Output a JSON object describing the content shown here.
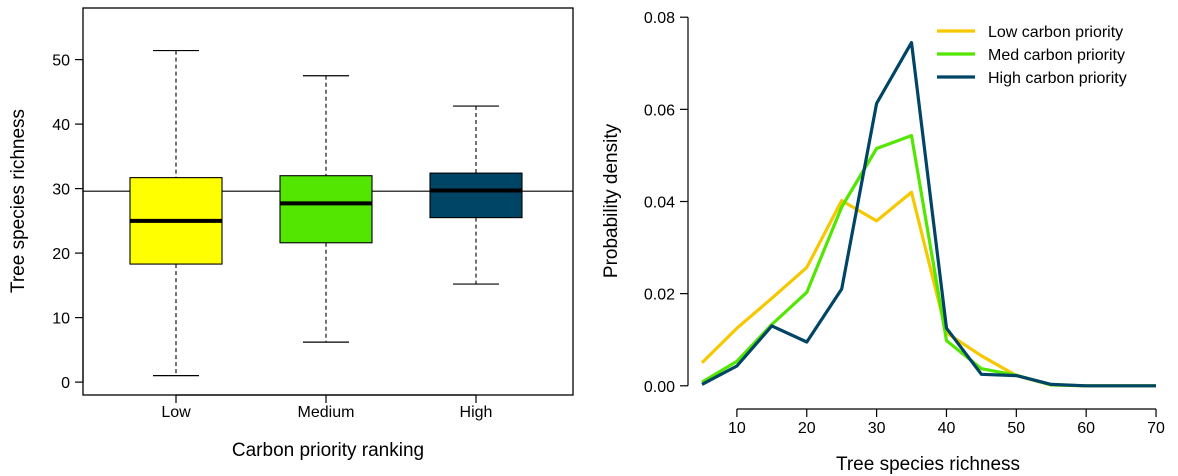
{
  "colors": {
    "low": "#ffff00",
    "medium": "#52e600",
    "high": "#004466",
    "low_line": "#f5c800",
    "medium_line": "#52e600",
    "high_line": "#004466"
  },
  "chart_data": [
    {
      "type": "box",
      "title": "",
      "xlabel": "Carbon priority ranking",
      "ylabel": "Tree species richness",
      "ylim": [
        -2,
        58
      ],
      "yticks": [
        0,
        10,
        20,
        30,
        40,
        50
      ],
      "categories": [
        "Low",
        "Medium",
        "High"
      ],
      "boxes": [
        {
          "category": "Low",
          "min": 1,
          "q1": 18.3,
          "median": 25,
          "q3": 31.7,
          "max": 51.4,
          "fill": "#ffff00"
        },
        {
          "category": "Medium",
          "min": 6.2,
          "q1": 21.6,
          "median": 27.7,
          "q3": 32,
          "max": 47.5,
          "fill": "#52e600"
        },
        {
          "category": "High",
          "min": 15.2,
          "q1": 25.5,
          "median": 29.7,
          "q3": 32.4,
          "max": 42.8,
          "fill": "#004466"
        }
      ],
      "reference_line": 29.6,
      "grid": false
    },
    {
      "type": "line",
      "title": "",
      "xlabel": "Tree species richness",
      "ylabel": "Probability density",
      "xlim": [
        3,
        72
      ],
      "ylim": [
        -0.002,
        0.082
      ],
      "xticks": [
        10,
        20,
        30,
        40,
        50,
        60,
        70
      ],
      "yticks": [
        "0.00",
        "0.02",
        "0.04",
        "0.06",
        "0.08"
      ],
      "x": [
        5,
        10,
        15,
        20,
        25,
        30,
        35,
        40,
        45,
        50,
        55,
        60,
        65,
        70
      ],
      "series": [
        {
          "name": "Low carbon priority",
          "color": "#f5c800",
          "values": [
            0.005,
            0.0125,
            0.019,
            0.0257,
            0.0402,
            0.0358,
            0.042,
            0.0115,
            0.0065,
            0.0022,
            0.0002,
            0.0,
            0.0,
            0.0
          ]
        },
        {
          "name": "Med carbon priority",
          "color": "#52e600",
          "values": [
            0.0008,
            0.0053,
            0.0133,
            0.0203,
            0.0388,
            0.0515,
            0.0543,
            0.0098,
            0.0037,
            0.0023,
            0.0002,
            0.0,
            0.0,
            0.0
          ]
        },
        {
          "name": "High carbon priority",
          "color": "#004466",
          "values": [
            0.0003,
            0.0043,
            0.013,
            0.0095,
            0.021,
            0.0613,
            0.0745,
            0.0125,
            0.0025,
            0.0022,
            0.0003,
            0.0,
            0.0,
            0.0
          ]
        }
      ],
      "legend": "top-right",
      "grid": false
    }
  ]
}
